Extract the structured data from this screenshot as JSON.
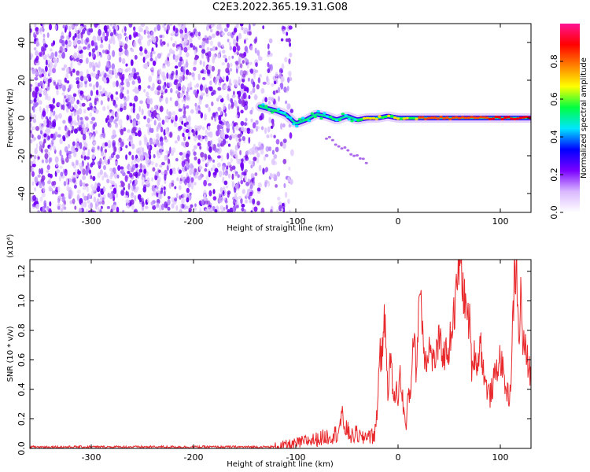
{
  "title": "C2E3.2022.365.19.31.G08",
  "chart_data": [
    {
      "type": "heatmap",
      "xlabel": "Height of straight line (km)",
      "ylabel": "Frequency (Hz)",
      "xlim": [
        -360,
        130
      ],
      "ylim": [
        -50,
        50
      ],
      "x_ticks": [
        -300,
        -200,
        -100,
        0,
        100
      ],
      "y_ticks": [
        -40,
        -20,
        0,
        20,
        40
      ],
      "colorbar": {
        "label": "Normalized spectral amplitude",
        "range": [
          0.0,
          1.0
        ],
        "ticks": [
          "0.0",
          "0.2",
          "0.4",
          "0.6",
          "0.8"
        ],
        "colormap": [
          "#ffffff",
          "#d9b8ff",
          "#7a00ff",
          "#0000ff",
          "#00e5ff",
          "#00ff40",
          "#ffff00",
          "#ff8000",
          "#ff0000",
          "#ff1493"
        ]
      },
      "signal_track": {
        "x": [
          -135,
          -120,
          -110,
          -100,
          -90,
          -80,
          -70,
          -60,
          -50,
          -40,
          -30,
          -20,
          -10,
          0,
          20,
          50,
          80,
          100,
          130
        ],
        "y": [
          6,
          4,
          2,
          -3,
          -1,
          2,
          1,
          -1,
          1,
          -1,
          0,
          0,
          1,
          0,
          0,
          0,
          0,
          0,
          0
        ]
      },
      "noise_region_xmax": -115
    },
    {
      "type": "line",
      "xlabel": "Height of straight line (km)",
      "ylabel": "SNR (10 * v/v)",
      "y_multiplier": "(x10⁴)",
      "xlim": [
        -360,
        130
      ],
      "ylim": [
        0,
        1.28
      ],
      "x_ticks": [
        -300,
        -200,
        -100,
        0,
        100
      ],
      "y_ticks": [
        "0.0",
        "0.2",
        "0.4",
        "0.6",
        "0.8",
        "1.0",
        "1.2"
      ],
      "color": "#e8282b",
      "series": {
        "x": [
          -360,
          -300,
          -200,
          -120,
          -110,
          -100,
          -90,
          -80,
          -70,
          -60,
          -55,
          -50,
          -45,
          -40,
          -35,
          -30,
          -25,
          -22,
          -20,
          -18,
          -16,
          -14,
          -12,
          -10,
          -8,
          -6,
          -4,
          -2,
          0,
          2,
          5,
          8,
          10,
          12,
          15,
          18,
          20,
          22,
          24,
          26,
          28,
          30,
          35,
          40,
          45,
          50,
          53,
          56,
          58,
          60,
          62,
          65,
          68,
          70,
          72,
          75,
          78,
          80,
          85,
          90,
          95,
          100,
          105,
          108,
          110,
          112,
          114,
          116,
          118,
          120,
          122,
          125,
          128,
          130
        ],
        "y": [
          0.01,
          0.01,
          0.01,
          0.01,
          0.02,
          0.03,
          0.05,
          0.06,
          0.08,
          0.1,
          0.2,
          0.12,
          0.08,
          0.1,
          0.06,
          0.1,
          0.08,
          0.12,
          0.3,
          0.7,
          0.55,
          0.9,
          0.75,
          0.4,
          0.6,
          0.5,
          0.3,
          0.4,
          0.35,
          0.5,
          0.3,
          0.12,
          0.4,
          0.35,
          0.8,
          0.5,
          0.95,
          1.1,
          0.8,
          0.65,
          0.6,
          0.7,
          0.58,
          0.72,
          0.63,
          0.68,
          0.85,
          0.95,
          1.15,
          1.28,
          1.2,
          1.0,
          0.9,
          0.85,
          0.55,
          0.65,
          0.55,
          0.75,
          0.45,
          0.35,
          0.5,
          0.62,
          0.42,
          0.35,
          0.4,
          0.8,
          1.2,
          1.18,
          0.7,
          1.05,
          0.72,
          0.65,
          0.55,
          0.5
        ]
      }
    }
  ]
}
